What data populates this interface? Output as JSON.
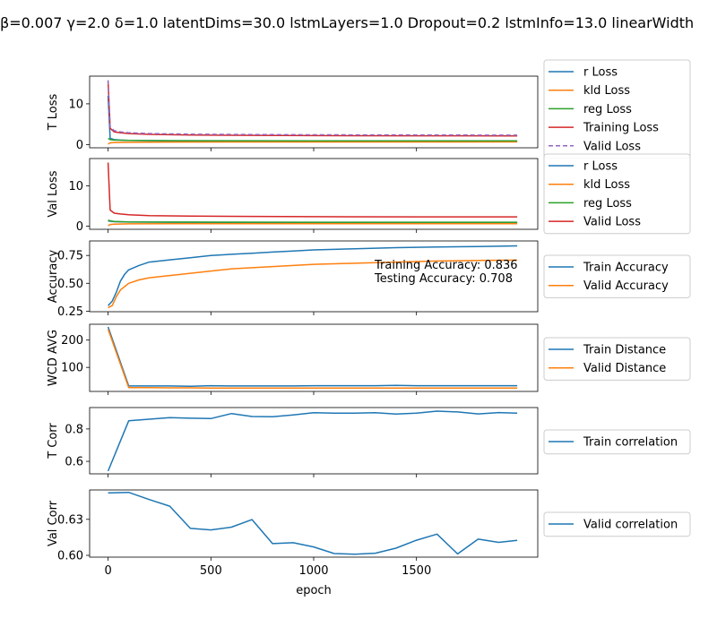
{
  "figure": {
    "title": "β=0.007 γ=2.0 δ=1.0 latentDims=30.0 lstmLayers=1.0 Dropout=0.2 lstmInfo=13.0 linearWidth",
    "xlabel": "epoch",
    "xticks": [
      0,
      500,
      1000,
      1500
    ],
    "xlim": [
      -90,
      2090
    ]
  },
  "colors": {
    "blue": "#1f77b4",
    "orange": "#ff7f0e",
    "green": "#2ca02c",
    "red": "#d62728",
    "purple": "#9467bd"
  },
  "chart_data": [
    {
      "id": "t-loss",
      "type": "line",
      "ylabel": "T Loss",
      "ylim": [
        -0.8,
        16.8
      ],
      "yticks": [
        0,
        10
      ],
      "legend": "outside-right",
      "series": [
        {
          "name": "r Loss",
          "color": "blue",
          "x": [
            0,
            10,
            30,
            60,
            100,
            300,
            600,
            1000,
            1500,
            1990
          ],
          "y": [
            12,
            1.5,
            1.2,
            1.1,
            1.0,
            0.9,
            0.85,
            0.8,
            0.78,
            0.76
          ]
        },
        {
          "name": "kld Loss",
          "color": "orange",
          "x": [
            0,
            10,
            30,
            100,
            300,
            600,
            1000,
            1500,
            1990
          ],
          "y": [
            0.1,
            0.4,
            0.5,
            0.55,
            0.6,
            0.62,
            0.63,
            0.64,
            0.65
          ]
        },
        {
          "name": "reg Loss",
          "color": "green",
          "x": [
            0,
            10,
            30,
            100,
            300,
            600,
            1000,
            1500,
            1990
          ],
          "y": [
            1.5,
            1.2,
            1.1,
            1.0,
            0.95,
            0.93,
            0.92,
            0.91,
            0.9
          ]
        },
        {
          "name": "Training Loss",
          "color": "red",
          "x": [
            0,
            10,
            30,
            60,
            100,
            200,
            400,
            700,
            1000,
            1500,
            1990
          ],
          "y": [
            15.5,
            4.0,
            3.1,
            2.9,
            2.7,
            2.5,
            2.35,
            2.25,
            2.2,
            2.15,
            2.1
          ]
        },
        {
          "name": "Valid Loss",
          "color": "purple",
          "dashed": true,
          "x": [
            0,
            10,
            30,
            60,
            100,
            200,
            400,
            700,
            1000,
            1500,
            1990
          ],
          "y": [
            15.8,
            4.3,
            3.4,
            3.1,
            2.9,
            2.7,
            2.55,
            2.45,
            2.4,
            2.35,
            2.3
          ]
        }
      ]
    },
    {
      "id": "val-loss",
      "type": "line",
      "ylabel": "Val Loss",
      "ylim": [
        -0.8,
        16.8
      ],
      "yticks": [
        0,
        10
      ],
      "legend": "outside-right",
      "series": [
        {
          "name": "r Loss",
          "color": "blue",
          "x": [
            0,
            10,
            30,
            100,
            300,
            600,
            1000,
            1500,
            1990
          ],
          "y": [
            1.3,
            1.2,
            1.1,
            1.0,
            0.95,
            0.92,
            0.9,
            0.88,
            0.87
          ]
        },
        {
          "name": "kld Loss",
          "color": "orange",
          "x": [
            0,
            10,
            30,
            100,
            300,
            600,
            1000,
            1500,
            1990
          ],
          "y": [
            0.1,
            0.4,
            0.5,
            0.55,
            0.58,
            0.6,
            0.6,
            0.61,
            0.61
          ]
        },
        {
          "name": "reg Loss",
          "color": "green",
          "x": [
            0,
            10,
            30,
            100,
            300,
            600,
            1000,
            1500,
            1990
          ],
          "y": [
            1.5,
            1.3,
            1.15,
            1.05,
            1.0,
            0.98,
            0.96,
            0.95,
            0.95
          ]
        },
        {
          "name": "Valid Loss",
          "color": "red",
          "x": [
            0,
            10,
            30,
            60,
            100,
            200,
            400,
            700,
            1000,
            1500,
            1990
          ],
          "y": [
            15.8,
            4.0,
            3.2,
            3.0,
            2.8,
            2.6,
            2.5,
            2.4,
            2.35,
            2.3,
            2.3
          ]
        }
      ]
    },
    {
      "id": "accuracy",
      "type": "line",
      "ylabel": "Accuracy",
      "ylim": [
        0.245,
        0.88
      ],
      "yticks": [
        0.25,
        0.5,
        0.75
      ],
      "ytick_labels": [
        "0.25",
        "0.50",
        "0.75"
      ],
      "legend": "outside-right",
      "annotations": [
        "Training Accuracy: 0.836",
        "Testing Accuracy: 0.708"
      ],
      "series": [
        {
          "name": "Train Accuracy",
          "color": "blue",
          "x": [
            0,
            20,
            40,
            60,
            80,
            100,
            150,
            200,
            300,
            400,
            500,
            600,
            700,
            800,
            900,
            1000,
            1200,
            1400,
            1600,
            1800,
            1990
          ],
          "y": [
            0.3,
            0.34,
            0.42,
            0.52,
            0.58,
            0.62,
            0.66,
            0.69,
            0.71,
            0.73,
            0.75,
            0.76,
            0.77,
            0.78,
            0.79,
            0.8,
            0.81,
            0.82,
            0.825,
            0.83,
            0.836
          ]
        },
        {
          "name": "Valid Accuracy",
          "color": "orange",
          "x": [
            0,
            20,
            40,
            60,
            80,
            100,
            150,
            200,
            300,
            400,
            500,
            600,
            700,
            800,
            900,
            1000,
            1200,
            1400,
            1600,
            1800,
            1990
          ],
          "y": [
            0.28,
            0.3,
            0.38,
            0.44,
            0.47,
            0.5,
            0.53,
            0.55,
            0.57,
            0.59,
            0.61,
            0.63,
            0.64,
            0.65,
            0.66,
            0.67,
            0.68,
            0.69,
            0.7,
            0.705,
            0.708
          ]
        }
      ]
    },
    {
      "id": "wcd-avg",
      "type": "line",
      "ylabel": "WCD AVG",
      "ylim": [
        12,
        258
      ],
      "yticks": [
        100,
        200
      ],
      "legend": "outside-right",
      "series": [
        {
          "name": "Train Distance",
          "color": "blue",
          "x": [
            0,
            100,
            200,
            300,
            400,
            500,
            600,
            700,
            800,
            900,
            1000,
            1100,
            1200,
            1300,
            1400,
            1500,
            1600,
            1700,
            1800,
            1900,
            1990
          ],
          "y": [
            248,
            32,
            32,
            32,
            31,
            33,
            32,
            32,
            32,
            32,
            33,
            33,
            33,
            33,
            34,
            33,
            33,
            33,
            33,
            33,
            33
          ]
        },
        {
          "name": "Valid Distance",
          "color": "orange",
          "x": [
            0,
            100,
            200,
            300,
            400,
            500,
            600,
            700,
            800,
            900,
            1000,
            1100,
            1200,
            1300,
            1400,
            1500,
            1600,
            1700,
            1800,
            1900,
            1990
          ],
          "y": [
            240,
            26,
            26,
            25,
            25,
            24,
            24,
            24,
            24,
            24,
            24,
            24,
            24,
            24,
            24,
            24,
            24,
            24,
            24,
            24,
            24
          ]
        }
      ]
    },
    {
      "id": "t-corr",
      "type": "line",
      "ylabel": "T Corr",
      "ylim": [
        0.523,
        0.932
      ],
      "yticks": [
        0.6,
        0.8
      ],
      "legend": "outside-right",
      "series": [
        {
          "name": "Train correlation",
          "color": "blue",
          "x": [
            0,
            100,
            200,
            300,
            400,
            500,
            600,
            700,
            800,
            900,
            1000,
            1100,
            1200,
            1300,
            1400,
            1500,
            1600,
            1700,
            1800,
            1900,
            1990
          ],
          "y": [
            0.54,
            0.85,
            0.86,
            0.87,
            0.866,
            0.864,
            0.895,
            0.877,
            0.875,
            0.886,
            0.9,
            0.897,
            0.898,
            0.9,
            0.892,
            0.898,
            0.91,
            0.905,
            0.893,
            0.901,
            0.898
          ]
        }
      ]
    },
    {
      "id": "val-corr",
      "type": "line",
      "ylabel": "Val Corr",
      "ylim": [
        0.5985,
        0.6545
      ],
      "yticks": [
        0.6,
        0.63
      ],
      "ytick_labels": [
        "0.60",
        "0.63"
      ],
      "legend": "outside-right",
      "series": [
        {
          "name": "Valid correlation",
          "color": "blue",
          "x": [
            0,
            100,
            200,
            300,
            400,
            500,
            600,
            700,
            800,
            900,
            1000,
            1100,
            1200,
            1300,
            1400,
            1500,
            1600,
            1700,
            1800,
            1900,
            1990
          ],
          "y": [
            0.652,
            0.6525,
            0.6465,
            0.641,
            0.6225,
            0.6212,
            0.6235,
            0.6298,
            0.6098,
            0.6105,
            0.607,
            0.6015,
            0.601,
            0.6018,
            0.606,
            0.6126,
            0.6177,
            0.6012,
            0.6135,
            0.6108,
            0.6125
          ]
        }
      ]
    }
  ]
}
